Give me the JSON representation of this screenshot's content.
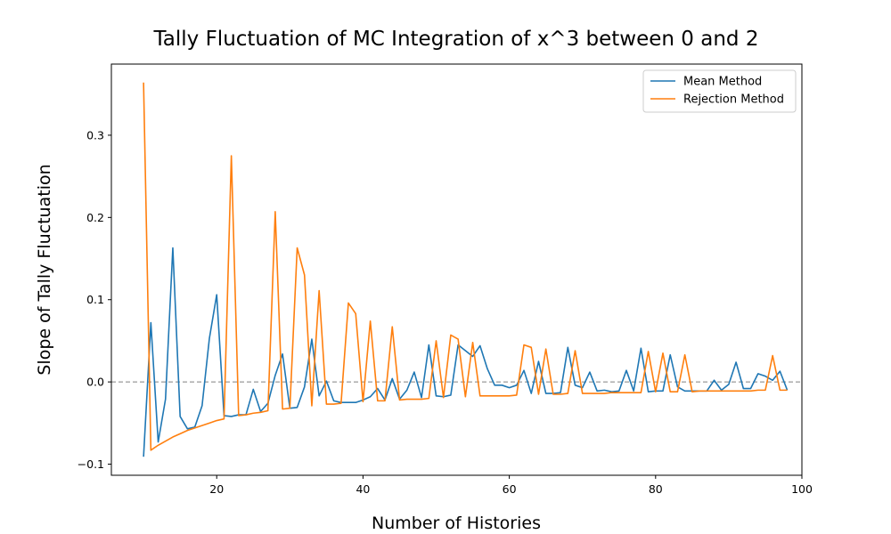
{
  "chart_data": {
    "type": "line",
    "title": "Tally Fluctuation of MC Integration of x^3 between 0 and 2",
    "xlabel": "Number of Histories",
    "ylabel": "Slope of Tally Fluctuation",
    "xlim": [
      5.6,
      100
    ],
    "ylim": [
      -0.1135,
      0.3865
    ],
    "xticks": [
      20,
      40,
      60,
      80,
      100
    ],
    "xtick_labels": [
      "20",
      "40",
      "60",
      "80",
      "100"
    ],
    "yticks": [
      -0.1,
      0.0,
      0.1,
      0.2,
      0.3
    ],
    "ytick_labels": [
      "−0.1",
      "0.0",
      "0.1",
      "0.2",
      "0.3"
    ],
    "grid": false,
    "reference_line": {
      "y": 0,
      "style": "dashed",
      "color": "#808080"
    },
    "legend": {
      "position": "top-right"
    },
    "x": [
      10,
      11,
      12,
      13,
      14,
      15,
      16,
      17,
      18,
      19,
      20,
      21,
      22,
      23,
      24,
      25,
      26,
      27,
      28,
      29,
      30,
      31,
      32,
      33,
      34,
      35,
      36,
      37,
      38,
      39,
      40,
      41,
      42,
      43,
      44,
      45,
      46,
      47,
      48,
      49,
      50,
      51,
      52,
      53,
      54,
      55,
      56,
      57,
      58,
      59,
      60,
      61,
      62,
      63,
      64,
      65,
      66,
      67,
      68,
      69,
      70,
      71,
      72,
      73,
      74,
      75,
      76,
      77,
      78,
      79,
      80,
      81,
      82,
      83,
      84,
      85,
      86,
      87,
      88,
      89,
      90,
      91,
      92,
      93,
      94,
      95,
      96,
      97,
      98
    ],
    "series": [
      {
        "name": "Mean Method",
        "color": "#1f77b4",
        "values": [
          -0.091,
          0.072,
          -0.073,
          -0.021,
          0.163,
          -0.042,
          -0.057,
          -0.055,
          -0.029,
          0.053,
          0.106,
          -0.041,
          -0.042,
          -0.04,
          -0.04,
          -0.009,
          -0.036,
          -0.026,
          0.008,
          0.034,
          -0.032,
          -0.031,
          -0.006,
          0.052,
          -0.017,
          0.001,
          -0.023,
          -0.025,
          -0.025,
          -0.025,
          -0.022,
          -0.018,
          -0.008,
          -0.022,
          0.004,
          -0.021,
          -0.01,
          0.012,
          -0.019,
          0.045,
          -0.017,
          -0.018,
          -0.016,
          0.045,
          0.038,
          0.031,
          0.044,
          0.016,
          -0.004,
          -0.004,
          -0.007,
          -0.004,
          0.014,
          -0.014,
          0.025,
          -0.014,
          -0.014,
          -0.013,
          0.042,
          -0.004,
          -0.007,
          0.012,
          -0.011,
          -0.01,
          -0.012,
          -0.011,
          0.014,
          -0.011,
          0.041,
          -0.012,
          -0.011,
          -0.011,
          0.033,
          -0.006,
          -0.011,
          -0.011,
          -0.011,
          -0.011,
          0.002,
          -0.01,
          -0.003,
          0.024,
          -0.008,
          -0.008,
          0.01,
          0.007,
          0.002,
          0.013,
          -0.01
        ]
      },
      {
        "name": "Rejection Method",
        "color": "#ff7f0e",
        "values": [
          0.364,
          -0.083,
          -0.077,
          -0.072,
          -0.067,
          -0.063,
          -0.059,
          -0.056,
          -0.053,
          -0.05,
          -0.047,
          -0.045,
          0.275,
          -0.041,
          -0.04,
          -0.038,
          -0.037,
          -0.035,
          0.207,
          -0.033,
          -0.032,
          0.163,
          0.13,
          -0.029,
          0.111,
          -0.027,
          -0.027,
          -0.026,
          0.096,
          0.083,
          -0.024,
          0.074,
          -0.023,
          -0.023,
          0.067,
          -0.022,
          -0.021,
          -0.021,
          -0.021,
          -0.02,
          0.05,
          -0.019,
          0.057,
          0.052,
          -0.018,
          0.048,
          -0.017,
          -0.017,
          -0.017,
          -0.017,
          -0.017,
          -0.016,
          0.045,
          0.042,
          -0.015,
          0.04,
          -0.015,
          -0.015,
          -0.014,
          0.038,
          -0.014,
          -0.014,
          -0.014,
          -0.014,
          -0.013,
          -0.013,
          -0.013,
          -0.013,
          -0.013,
          0.037,
          -0.012,
          0.035,
          -0.012,
          -0.012,
          0.033,
          -0.012,
          -0.011,
          -0.011,
          -0.011,
          -0.011,
          -0.011,
          -0.011,
          -0.011,
          -0.011,
          -0.01,
          -0.01,
          0.032,
          -0.01,
          -0.01
        ]
      }
    ]
  }
}
